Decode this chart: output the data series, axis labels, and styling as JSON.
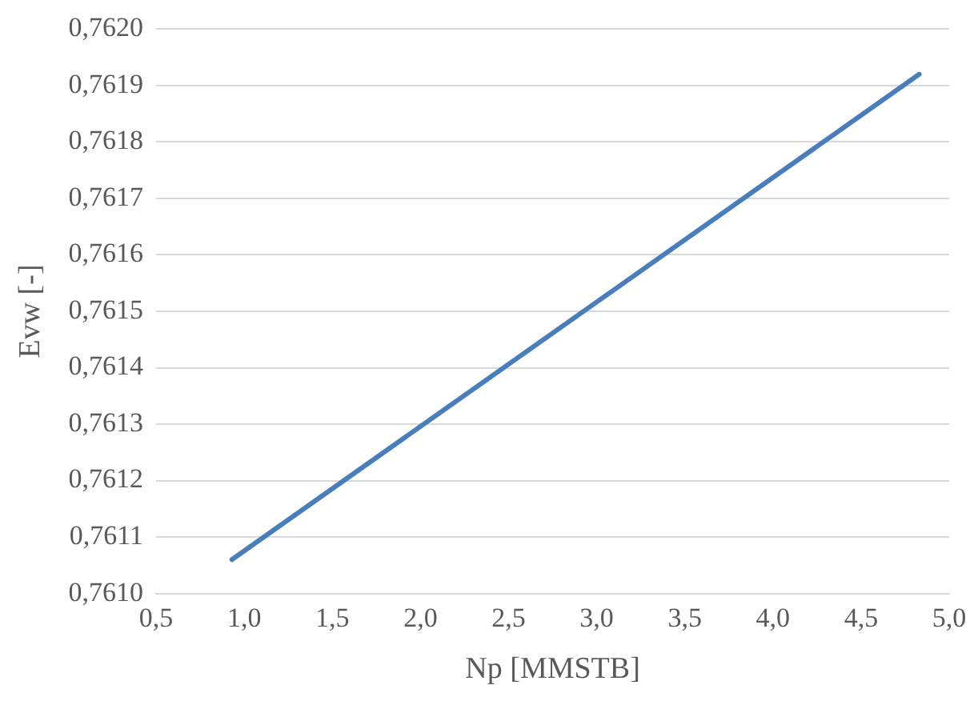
{
  "chart_data": {
    "type": "line",
    "xlabel": "Np [MMSTB]",
    "ylabel": "Evw [-]",
    "x": [
      0.93,
      4.83
    ],
    "series": [
      {
        "color": "#4a7ebb",
        "values": [
          0.76106,
          0.76192
        ]
      }
    ],
    "xlim": [
      0.5,
      5.0
    ],
    "xticks": [
      {
        "value": 0.5,
        "label": "0,5"
      },
      {
        "value": 1.0,
        "label": "1,0"
      },
      {
        "value": 1.5,
        "label": "1,5"
      },
      {
        "value": 2.0,
        "label": "2,0"
      },
      {
        "value": 2.5,
        "label": "2,5"
      },
      {
        "value": 3.0,
        "label": "3,0"
      },
      {
        "value": 3.5,
        "label": "3,5"
      },
      {
        "value": 4.0,
        "label": "4,0"
      },
      {
        "value": 4.5,
        "label": "4,5"
      },
      {
        "value": 5.0,
        "label": "5,0"
      }
    ],
    "ylim": [
      0.761,
      0.762
    ],
    "yticks": [
      {
        "value": 0.761,
        "label": "0,7610"
      },
      {
        "value": 0.7611,
        "label": "0,7611"
      },
      {
        "value": 0.7612,
        "label": "0,7612"
      },
      {
        "value": 0.7613,
        "label": "0,7613"
      },
      {
        "value": 0.7614,
        "label": "0,7614"
      },
      {
        "value": 0.7615,
        "label": "0,7615"
      },
      {
        "value": 0.7616,
        "label": "0,7616"
      },
      {
        "value": 0.7617,
        "label": "0,7617"
      },
      {
        "value": 0.7618,
        "label": "0,7618"
      },
      {
        "value": 0.7619,
        "label": "0,7619"
      },
      {
        "value": 0.762,
        "label": "0,7620"
      }
    ],
    "grid": "y",
    "legend": false,
    "marker": "none",
    "line_style": "solid"
  }
}
